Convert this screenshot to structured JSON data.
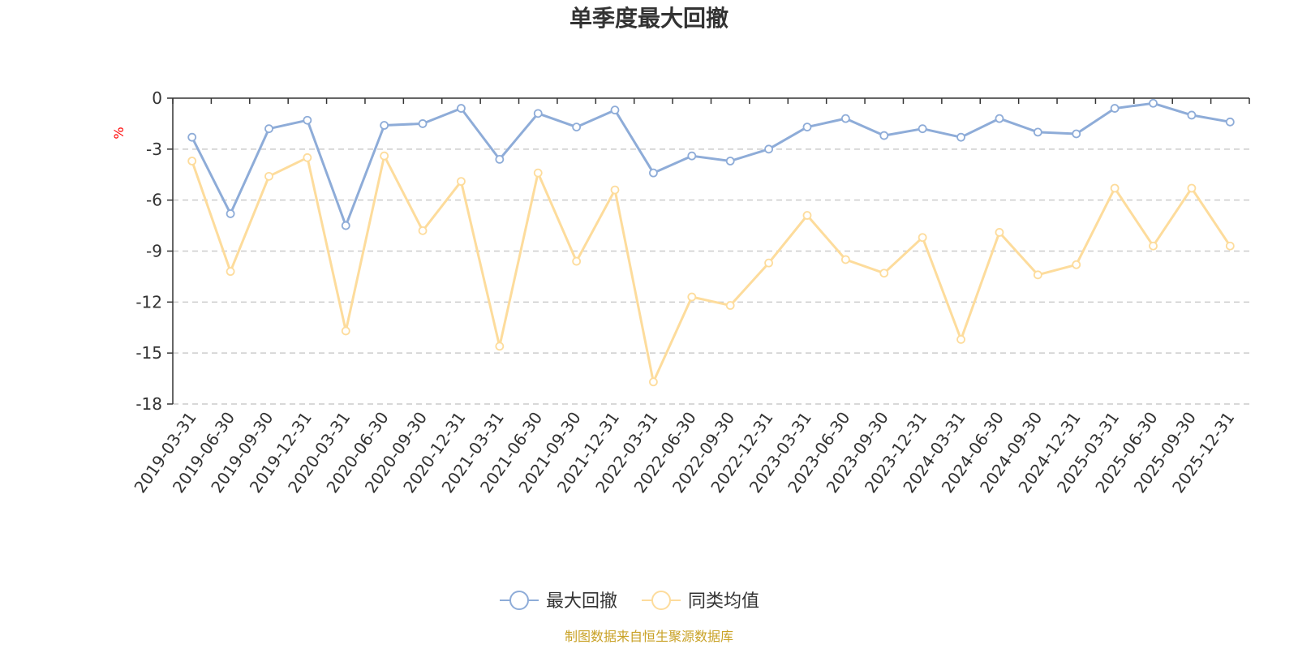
{
  "chart_data": {
    "type": "line",
    "title": "单季度最大回撤",
    "ylabel": "%",
    "ylim": [
      -18,
      0
    ],
    "yticks": [
      0,
      -3,
      -6,
      -9,
      -12,
      -15,
      -18
    ],
    "grid": true,
    "legend_position": "bottom",
    "categories": [
      "2019-03-31",
      "2019-06-30",
      "2019-09-30",
      "2019-12-31",
      "2020-03-31",
      "2020-06-30",
      "2020-09-30",
      "2020-12-31",
      "2021-03-31",
      "2021-06-30",
      "2021-09-30",
      "2021-12-31",
      "2022-03-31",
      "2022-06-30",
      "2022-09-30",
      "2022-12-31",
      "2023-03-31",
      "2023-06-30",
      "2023-09-30",
      "2023-12-31",
      "2024-03-31",
      "2024-06-30",
      "2024-09-30",
      "2024-12-31",
      "2025-03-31",
      "2025-06-30",
      "2025-09-30",
      "2025-12-31"
    ],
    "series": [
      {
        "name": "最大回撤",
        "color": "#8eacd8",
        "values": [
          -2.3,
          -6.8,
          -1.8,
          -1.3,
          -7.5,
          -1.6,
          -1.5,
          -0.6,
          -3.6,
          -0.9,
          -1.7,
          -0.7,
          -4.4,
          -3.4,
          -3.7,
          -3.0,
          -1.7,
          -1.2,
          -2.2,
          -1.8,
          -2.3,
          -1.2,
          -2.0,
          -2.1,
          -0.6,
          -0.3,
          -1.0,
          -1.4
        ]
      },
      {
        "name": "同类均值",
        "color": "#fddc9c",
        "values": [
          -3.7,
          -10.2,
          -4.6,
          -3.5,
          -13.7,
          -3.4,
          -7.8,
          -4.9,
          -14.6,
          -4.4,
          -9.6,
          -5.4,
          -16.7,
          -11.7,
          -12.2,
          -9.7,
          -6.9,
          -9.5,
          -10.3,
          -8.2,
          -14.2,
          -7.9,
          -10.4,
          -9.8,
          -5.3,
          -8.7,
          -5.3,
          -8.7
        ]
      }
    ],
    "source": "制图数据来自恒生聚源数据库"
  }
}
